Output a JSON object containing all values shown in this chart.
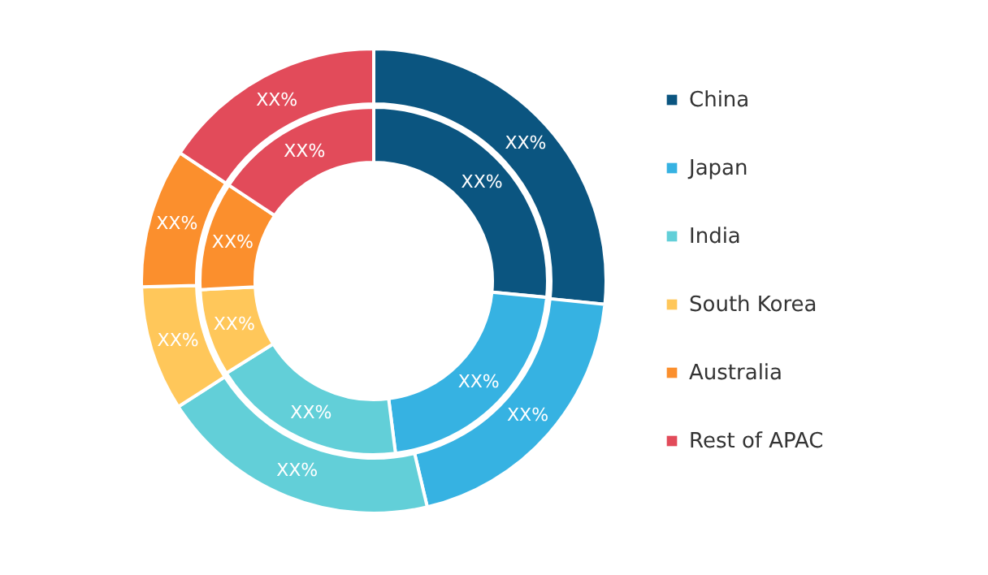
{
  "chart_data": {
    "type": "donut",
    "categories": [
      "China",
      "Japan",
      "India",
      "South Korea",
      "Australia",
      "Rest of APAC"
    ],
    "colors": [
      "#0b5580",
      "#36b2e2",
      "#62cfd8",
      "#ffc75a",
      "#fb8f2d",
      "#e24b5a"
    ],
    "series": [
      {
        "values": [
          26.5,
          21.5,
          18.1,
          8.1,
          10.1,
          15.7
        ],
        "value_labels": [
          "XX%",
          "XX%",
          "XX%",
          "XX%",
          "XX%",
          "XX%"
        ]
      },
      {
        "values": [
          26.6,
          19.7,
          19.6,
          8.7,
          9.7,
          15.7
        ],
        "value_labels": [
          "XX%",
          "XX%",
          "XX%",
          "XX%",
          "XX%",
          "XX%"
        ]
      }
    ],
    "legend": "right"
  }
}
